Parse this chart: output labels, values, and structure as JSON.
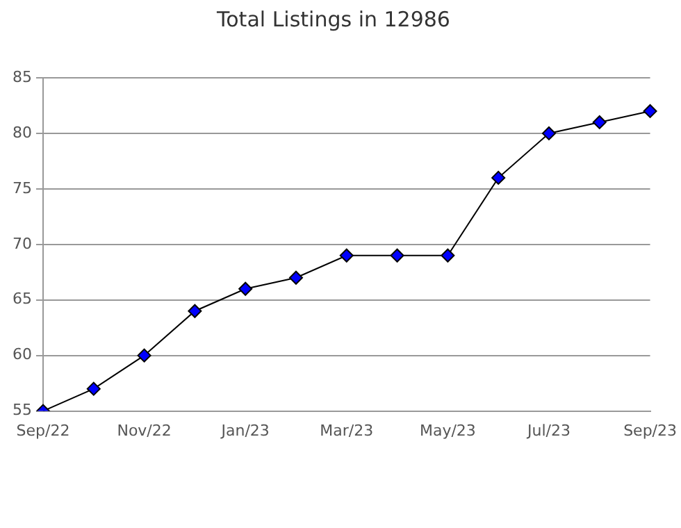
{
  "chart_data": {
    "type": "line",
    "title": "Total Listings in 12986",
    "categories": [
      "Sep/22",
      null,
      "Nov/22",
      null,
      "Jan/23",
      null,
      "Mar/23",
      null,
      "May/23",
      null,
      "Jul/23",
      null,
      "Sep/23"
    ],
    "series": [
      {
        "color": "#0000ff",
        "values": [
          55,
          57,
          60,
          64,
          66,
          67,
          69,
          69,
          69,
          76,
          80,
          81,
          82
        ]
      }
    ],
    "ylim": [
      55,
      85
    ],
    "yticks": [
      55,
      60,
      65,
      70,
      75,
      80,
      85
    ],
    "grid": "y",
    "marker": "diamond",
    "legend": false
  }
}
